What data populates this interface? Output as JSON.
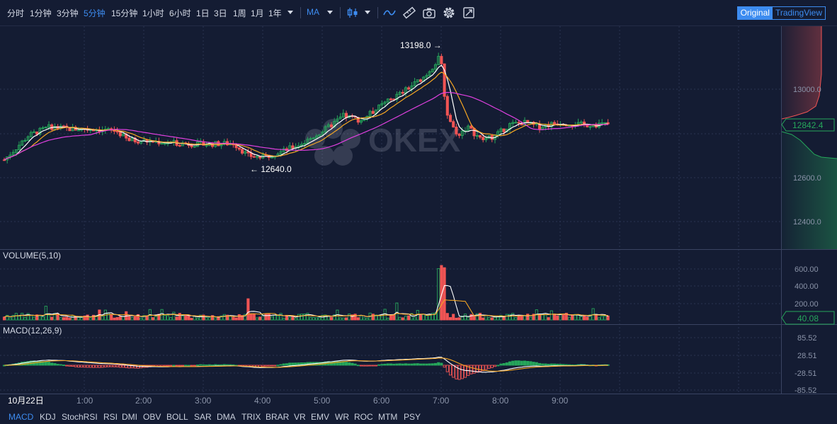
{
  "toolbar": {
    "intervals": [
      "分时",
      "1分钟",
      "3分钟",
      "5分钟",
      "15分钟",
      "1小时",
      "6小时",
      "1日",
      "3日",
      "1周",
      "1月",
      "1年"
    ],
    "active_interval": "5分钟",
    "indicator": "MA",
    "view_toggle": {
      "original": "Original",
      "tradingview": "TradingView",
      "selected": "Original"
    },
    "icons": [
      "candle-type-icon",
      "chevron-down-icon",
      "line-tool-icon",
      "ruler-icon",
      "camera-icon",
      "gear-icon",
      "fullscreen-icon"
    ]
  },
  "watermark": "OKEX",
  "price_panel": {
    "axis_labels": [
      "13000.0",
      "12600.0",
      "12400.0"
    ],
    "current_price": "12842.4",
    "high_annotation": "13198.0 →",
    "low_annotation": "← 12640.0"
  },
  "volume_panel": {
    "title": "VOLUME(5,10)",
    "axis_labels": [
      "600.00",
      "400.00",
      "200.00"
    ],
    "current": "40.08"
  },
  "macd_panel": {
    "title": "MACD(12,26,9)",
    "axis_labels": [
      "85.52",
      "28.51",
      "-28.51",
      "-85.52"
    ]
  },
  "time_axis": {
    "labels": [
      "10月22日",
      "1:00",
      "2:00",
      "3:00",
      "4:00",
      "5:00",
      "6:00",
      "7:00",
      "8:00",
      "9:00"
    ]
  },
  "indicators": [
    "MACD",
    "KDJ",
    "StochRSI",
    "RSI",
    "DMI",
    "OBV",
    "BOLL",
    "SAR",
    "DMA",
    "TRIX",
    "BRAR",
    "VR",
    "EMV",
    "WR",
    "ROC",
    "MTM",
    "PSY"
  ],
  "active_indicator": "MACD",
  "colors": {
    "up": "#26a65b",
    "down": "#f05454",
    "accent": "#3d8cf0",
    "ma_fast": "#ffffff",
    "ma_mid": "#f5a623",
    "ma_slow": "#e040e0"
  },
  "chart_data": {
    "type": "candlestick",
    "symbol_price_range": [
      12400,
      13200
    ],
    "current_price": 12842.4,
    "high": 13198.0,
    "low": 12640.0,
    "time_labels": [
      "10月22日",
      "1:00",
      "2:00",
      "3:00",
      "4:00",
      "5:00",
      "6:00",
      "7:00",
      "8:00",
      "9:00"
    ],
    "volume_current": 40.08,
    "volume_ylim": [
      0,
      700
    ],
    "macd_range": [
      -85.52,
      85.52
    ]
  }
}
